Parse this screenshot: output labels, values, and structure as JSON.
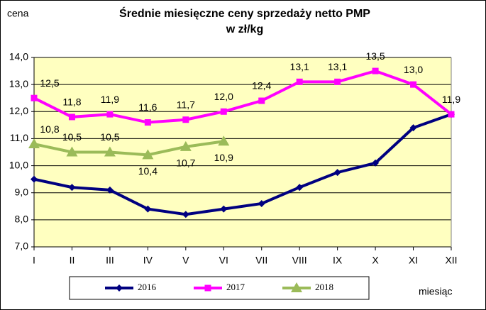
{
  "chart_data": {
    "type": "line",
    "title": "Średnie miesięczne ceny sprzedaży netto PMP",
    "subtitle": "w zł/kg",
    "y_label": "cena",
    "x_label": "miesiąc",
    "categories": [
      "I",
      "II",
      "III",
      "IV",
      "V",
      "VI",
      "VII",
      "VIII",
      "IX",
      "X",
      "XI",
      "XII"
    ],
    "ylim": [
      7,
      14
    ],
    "yticks": [
      {
        "value": 7,
        "label": "7,0"
      },
      {
        "value": 8,
        "label": "8,0"
      },
      {
        "value": 9,
        "label": "9,0"
      },
      {
        "value": 10,
        "label": "10,0"
      },
      {
        "value": 11,
        "label": "11,0"
      },
      {
        "value": 12,
        "label": "12,0"
      },
      {
        "value": 13,
        "label": "13,0"
      },
      {
        "value": 14,
        "label": "14,0"
      }
    ],
    "grid": true,
    "legend": "bottom",
    "series": [
      {
        "name": "2016",
        "color": "#000080",
        "marker": "diamond",
        "values": [
          9.5,
          9.2,
          9.1,
          8.4,
          8.2,
          8.4,
          8.6,
          9.2,
          9.75,
          10.1,
          11.4,
          11.9
        ]
      },
      {
        "name": "2017",
        "color": "#FF00FF",
        "marker": "square",
        "values": [
          12.5,
          11.8,
          11.9,
          11.6,
          11.7,
          12.0,
          12.4,
          13.1,
          13.1,
          13.5,
          13.0,
          11.9
        ],
        "value_labels": [
          "12,5",
          "11,8",
          "11,9",
          "11,6",
          "11,7",
          "12,0",
          "12,4",
          "13,1",
          "13,1",
          "13,5",
          "13,0",
          "11,9"
        ]
      },
      {
        "name": "2018",
        "color": "#9BBB59",
        "marker": "triangle",
        "values": [
          10.8,
          10.5,
          10.5,
          10.4,
          10.7,
          10.9,
          null,
          null,
          null,
          null,
          null,
          null
        ],
        "value_labels": [
          "10,8",
          "10,5",
          "10,5",
          "10,4",
          "10,7",
          "10,9",
          null,
          null,
          null,
          null,
          null,
          null
        ]
      }
    ]
  }
}
